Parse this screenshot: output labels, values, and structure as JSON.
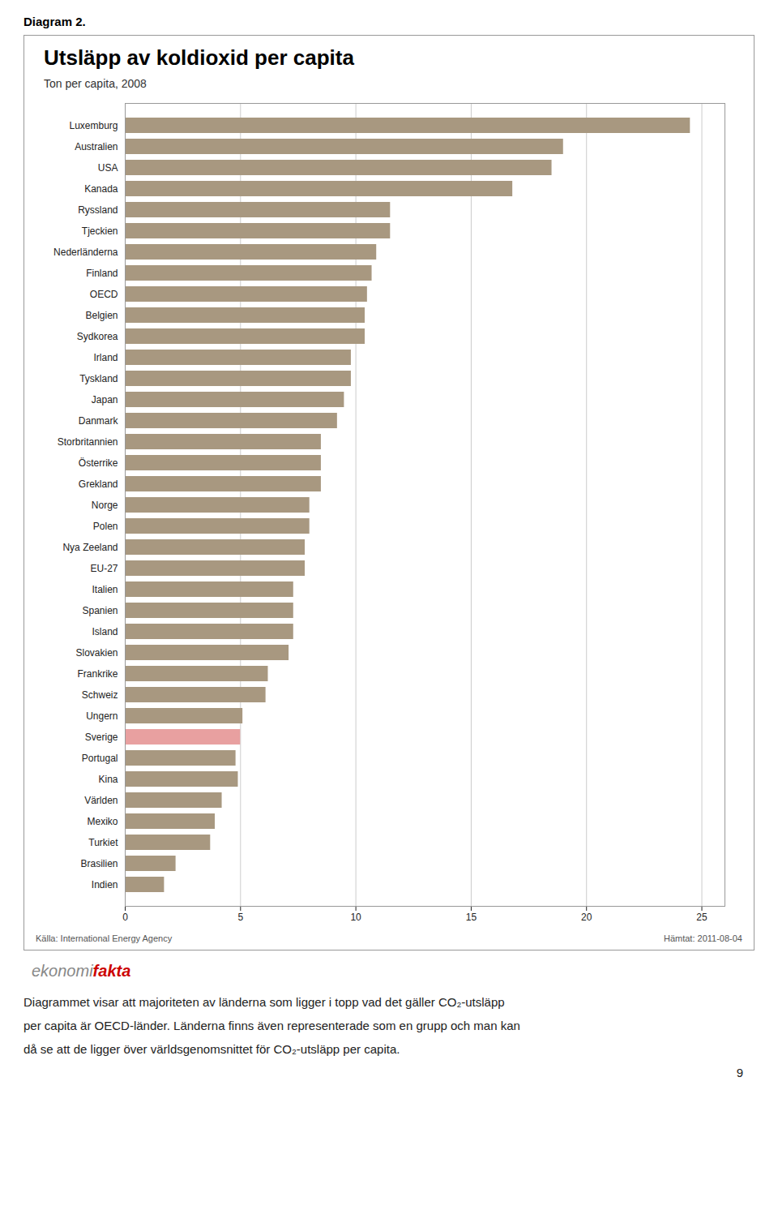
{
  "chart_data": {
    "type": "bar",
    "orientation": "horizontal",
    "label": "Diagram 2.",
    "title": "Utsläpp av koldioxid per capita",
    "subtitle": "Ton per capita, 2008",
    "categories": [
      "Luxemburg",
      "Australien",
      "USA",
      "Kanada",
      "Ryssland",
      "Tjeckien",
      "Nederländerna",
      "Finland",
      "OECD",
      "Belgien",
      "Sydkorea",
      "Irland",
      "Tyskland",
      "Japan",
      "Danmark",
      "Storbritannien",
      "Österrike",
      "Grekland",
      "Norge",
      "Polen",
      "Nya Zeeland",
      "EU-27",
      "Italien",
      "Spanien",
      "Island",
      "Slovakien",
      "Frankrike",
      "Schweiz",
      "Ungern",
      "Sverige",
      "Portugal",
      "Kina",
      "Världen",
      "Mexiko",
      "Turkiet",
      "Brasilien",
      "Indien"
    ],
    "values": [
      24.5,
      19.0,
      18.5,
      16.8,
      11.5,
      11.5,
      10.9,
      10.7,
      10.5,
      10.4,
      10.4,
      9.8,
      9.8,
      9.5,
      9.2,
      8.5,
      8.5,
      8.5,
      8.0,
      8.0,
      7.8,
      7.8,
      7.3,
      7.3,
      7.3,
      7.1,
      6.2,
      6.1,
      5.1,
      5.0,
      4.8,
      4.9,
      4.2,
      3.9,
      3.7,
      2.2,
      1.7
    ],
    "colors": [
      "#a89880",
      "#a89880",
      "#a89880",
      "#a89880",
      "#a89880",
      "#a89880",
      "#a89880",
      "#a89880",
      "#a89880",
      "#a89880",
      "#a89880",
      "#a89880",
      "#a89880",
      "#a89880",
      "#a89880",
      "#a89880",
      "#a89880",
      "#a89880",
      "#a89880",
      "#a89880",
      "#a89880",
      "#a89880",
      "#a89880",
      "#a89880",
      "#a89880",
      "#a89880",
      "#a89880",
      "#a89880",
      "#a89880",
      "#e8a0a0",
      "#a89880",
      "#a89880",
      "#a89880",
      "#a89880",
      "#a89880",
      "#a89880",
      "#a89880"
    ],
    "xlim": [
      0,
      26
    ],
    "xticks": [
      0,
      5,
      10,
      15,
      20,
      25
    ],
    "grid": true,
    "source": [
      "Källa: International Energy Agency",
      "Hämtat: 2011-08-04"
    ],
    "logo": [
      "ekonomi",
      "fakta"
    ],
    "body_text": [
      "Diagrammet visar att majoriteten av länderna som ligger i topp vad det gäller CO₂-utsläpp",
      "per capita är OECD-länder. Länderna finns även representerade som en grupp och man kan",
      "då se att de ligger över världsgenomsnittet för CO₂-utsläpp per capita."
    ],
    "page_number": "9"
  }
}
